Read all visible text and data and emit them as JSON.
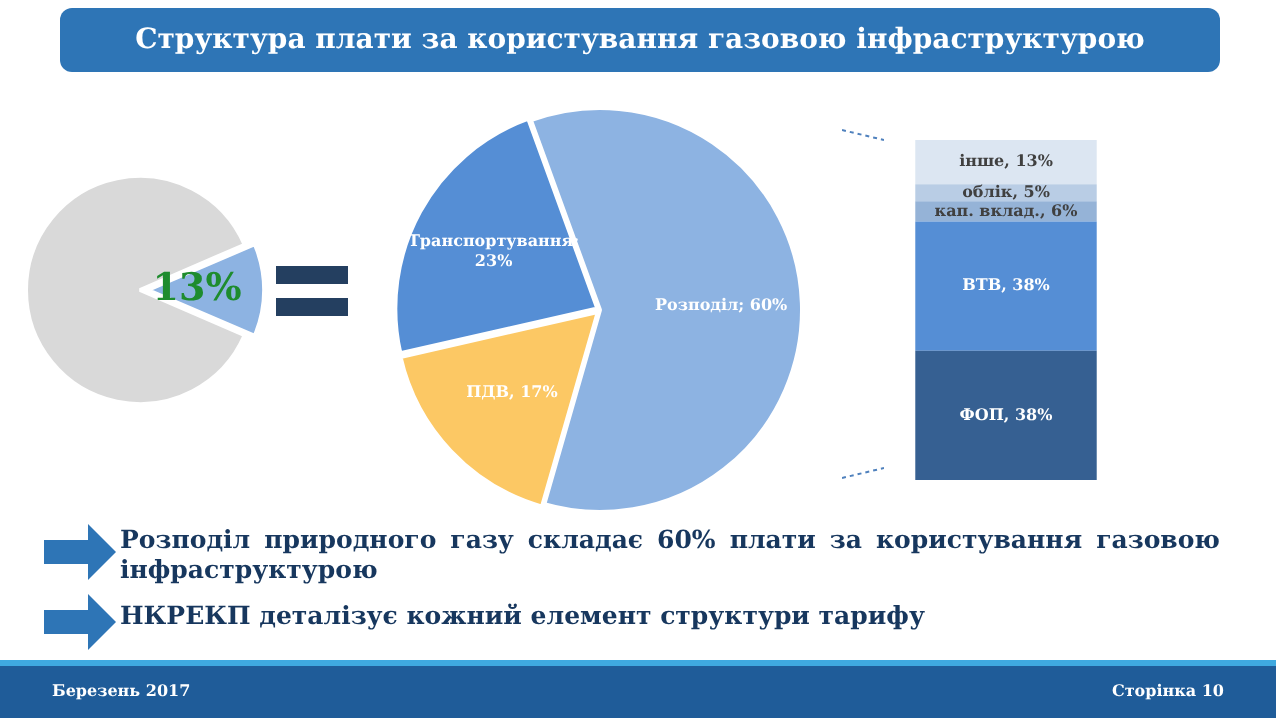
{
  "chart_data": [
    {
      "type": "pie",
      "title": "Структура плати за користування газовою інфраструктурою",
      "categories": [
        null,
        null
      ],
      "values": [
        13,
        87
      ],
      "colors": [
        "#8db3e2",
        "#d9d9d9"
      ],
      "value_labels": [
        "13%",
        null
      ]
    },
    {
      "type": "pie",
      "categories": [
        null,
        null,
        null
      ],
      "values": [
        60,
        17,
        23
      ],
      "colors": [
        "#8db3e2",
        "#fcc864",
        "#558ed5"
      ],
      "value_labels": [
        "Розподіл; 60%",
        "ПДВ, 17%",
        "Транспортування; 23%"
      ],
      "annotations": [
        "Розподіл природного газу складає 60% плати за користування газовою інфраструктурою",
        "НКРЕКП деталізує кожний елемент структури тарифу",
        "Березень 2017",
        "Сторінка 10"
      ]
    },
    {
      "type": "bar",
      "stacked": true,
      "categories": [
        null
      ],
      "ylim": [
        0,
        100
      ],
      "tick_labels": false,
      "series": [
        {
          "color": "#366092",
          "values": [
            38
          ],
          "value_labels": [
            "ФОП, 38%"
          ]
        },
        {
          "color": "#558ed5",
          "values": [
            38
          ],
          "value_labels": [
            "ВТВ, 38%"
          ]
        },
        {
          "color": "#95b3d7",
          "values": [
            6
          ],
          "value_labels": [
            "кап. вклад., 6%"
          ]
        },
        {
          "color": "#b9cde5",
          "values": [
            5
          ],
          "value_labels": [
            "облік, 5%"
          ]
        },
        {
          "color": "#dce6f2",
          "values": [
            13
          ],
          "value_labels": [
            "інше, 13%"
          ]
        }
      ]
    }
  ]
}
